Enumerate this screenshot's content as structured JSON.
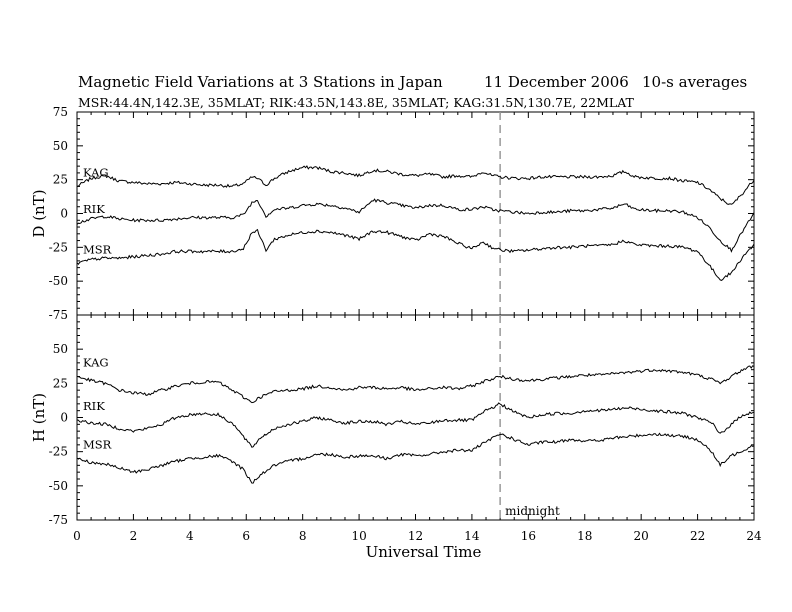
{
  "title": {
    "main": "Magnetic Field Variations at 3 Stations in Japan",
    "date": "11 December 2006",
    "averaging": "10-s averages"
  },
  "subtitle": "MSR:44.4N,142.3E, 35MLAT;  RIK:43.5N,143.8E, 35MLAT;  KAG:31.5N,130.7E, 22MLAT",
  "chart_data": [
    {
      "type": "line",
      "title": "",
      "xlabel": "Universal Time",
      "ylabel": "D (nT)",
      "xlim": [
        0,
        24
      ],
      "ylim": [
        -75,
        75
      ],
      "yticks": [
        75,
        50,
        25,
        0,
        -25,
        -50,
        -75
      ],
      "xticks": [
        0,
        2,
        4,
        6,
        8,
        10,
        12,
        14,
        16,
        18,
        20,
        22,
        24
      ],
      "grid": false,
      "annotation": {
        "x": 15,
        "style": "dashed vertical line"
      },
      "x": [
        0,
        0.5,
        1,
        1.5,
        2,
        2.5,
        3,
        3.5,
        4,
        4.5,
        5,
        5.5,
        5.9,
        6.2,
        6.4,
        6.7,
        7,
        7.5,
        8,
        8.5,
        9,
        9.5,
        10,
        10.5,
        11,
        11.5,
        12,
        12.5,
        13,
        13.5,
        14,
        14.4,
        14.7,
        15,
        15.5,
        16,
        16.5,
        17,
        17.5,
        18,
        18.5,
        19,
        19.4,
        19.8,
        20.5,
        21,
        21.5,
        22,
        22.4,
        22.8,
        23.2,
        23.6,
        24
      ],
      "series": [
        {
          "name": "KAG",
          "values": [
            20,
            26,
            28,
            24,
            23,
            22,
            22,
            23,
            22,
            21,
            21,
            20,
            22,
            27,
            26,
            21,
            26,
            31,
            34,
            34,
            31,
            30,
            28,
            32,
            31,
            29,
            28,
            29,
            27,
            28,
            27,
            31,
            28,
            27,
            26,
            26,
            27,
            27,
            27,
            27,
            27,
            28,
            31,
            27,
            26,
            26,
            24,
            23,
            18,
            11,
            6,
            15,
            25
          ]
        },
        {
          "name": "RIK",
          "values": [
            -7,
            -4,
            -2,
            -4,
            -5,
            -5,
            -5,
            -4,
            -3,
            -3,
            -3,
            -3,
            -1,
            8,
            10,
            -2,
            3,
            4,
            6,
            7,
            6,
            4,
            1,
            10,
            8,
            6,
            4,
            6,
            6,
            3,
            3,
            5,
            3,
            2,
            1,
            0,
            1,
            1,
            2,
            2,
            3,
            4,
            7,
            3,
            2,
            2,
            1,
            -3,
            -10,
            -20,
            -27,
            -13,
            0
          ]
        },
        {
          "name": "MSR",
          "values": [
            -37,
            -34,
            -33,
            -33,
            -32,
            -31,
            -30,
            -28,
            -28,
            -28,
            -28,
            -28,
            -26,
            -14,
            -13,
            -27,
            -19,
            -16,
            -14,
            -13,
            -14,
            -16,
            -19,
            -13,
            -14,
            -17,
            -20,
            -15,
            -17,
            -22,
            -26,
            -21,
            -25,
            -27,
            -28,
            -27,
            -26,
            -25,
            -25,
            -24,
            -24,
            -23,
            -20,
            -23,
            -24,
            -24,
            -25,
            -28,
            -38,
            -49,
            -44,
            -32,
            -23
          ]
        }
      ]
    },
    {
      "type": "line",
      "title": "",
      "xlabel": "Universal Time",
      "ylabel": "H (nT)",
      "xlim": [
        0,
        24
      ],
      "ylim": [
        -75,
        75
      ],
      "yticks": [
        75,
        50,
        25,
        0,
        -25,
        -50,
        -75
      ],
      "xticks": [
        0,
        2,
        4,
        6,
        8,
        10,
        12,
        14,
        16,
        18,
        20,
        22,
        24
      ],
      "grid": false,
      "annotation": {
        "x": 15,
        "label": "midnight",
        "style": "dashed vertical line"
      },
      "x": [
        0,
        0.5,
        1,
        1.5,
        2,
        2.5,
        3,
        3.5,
        4,
        4.5,
        5,
        5.5,
        5.9,
        6.2,
        6.5,
        7,
        7.5,
        8,
        8.5,
        9,
        9.5,
        10,
        10.5,
        11,
        11.5,
        12,
        12.5,
        13,
        13.5,
        14,
        14.5,
        15,
        15.5,
        16,
        16.5,
        17,
        17.5,
        18,
        18.5,
        19,
        19.5,
        20,
        20.5,
        21,
        21.5,
        22,
        22.5,
        22.8,
        23.2,
        23.6,
        24
      ],
      "series": [
        {
          "name": "KAG",
          "values": [
            30,
            27,
            25,
            20,
            18,
            17,
            20,
            23,
            25,
            26,
            26,
            20,
            15,
            11,
            15,
            19,
            20,
            21,
            23,
            22,
            20,
            22,
            22,
            21,
            22,
            20,
            21,
            22,
            21,
            23,
            27,
            30,
            28,
            27,
            28,
            29,
            30,
            31,
            31,
            32,
            33,
            34,
            35,
            34,
            33,
            31,
            28,
            25,
            30,
            35,
            38
          ]
        },
        {
          "name": "RIK",
          "values": [
            -2,
            -4,
            -5,
            -8,
            -10,
            -8,
            -5,
            0,
            2,
            3,
            2,
            -4,
            -14,
            -22,
            -15,
            -8,
            -5,
            -3,
            0,
            -2,
            -4,
            -3,
            -3,
            -5,
            -3,
            -5,
            -4,
            -2,
            -2,
            -2,
            5,
            10,
            4,
            0,
            2,
            3,
            3,
            5,
            5,
            6,
            7,
            6,
            5,
            4,
            3,
            0,
            -4,
            -12,
            -5,
            2,
            4
          ]
        },
        {
          "name": "MSR",
          "values": [
            -30,
            -33,
            -34,
            -37,
            -40,
            -38,
            -35,
            -32,
            -30,
            -29,
            -28,
            -32,
            -38,
            -48,
            -42,
            -35,
            -32,
            -30,
            -27,
            -27,
            -29,
            -28,
            -28,
            -30,
            -27,
            -28,
            -27,
            -25,
            -24,
            -24,
            -18,
            -12,
            -16,
            -20,
            -18,
            -18,
            -16,
            -17,
            -17,
            -15,
            -14,
            -13,
            -12,
            -13,
            -14,
            -16,
            -25,
            -35,
            -28,
            -24,
            -20
          ]
        }
      ]
    }
  ]
}
